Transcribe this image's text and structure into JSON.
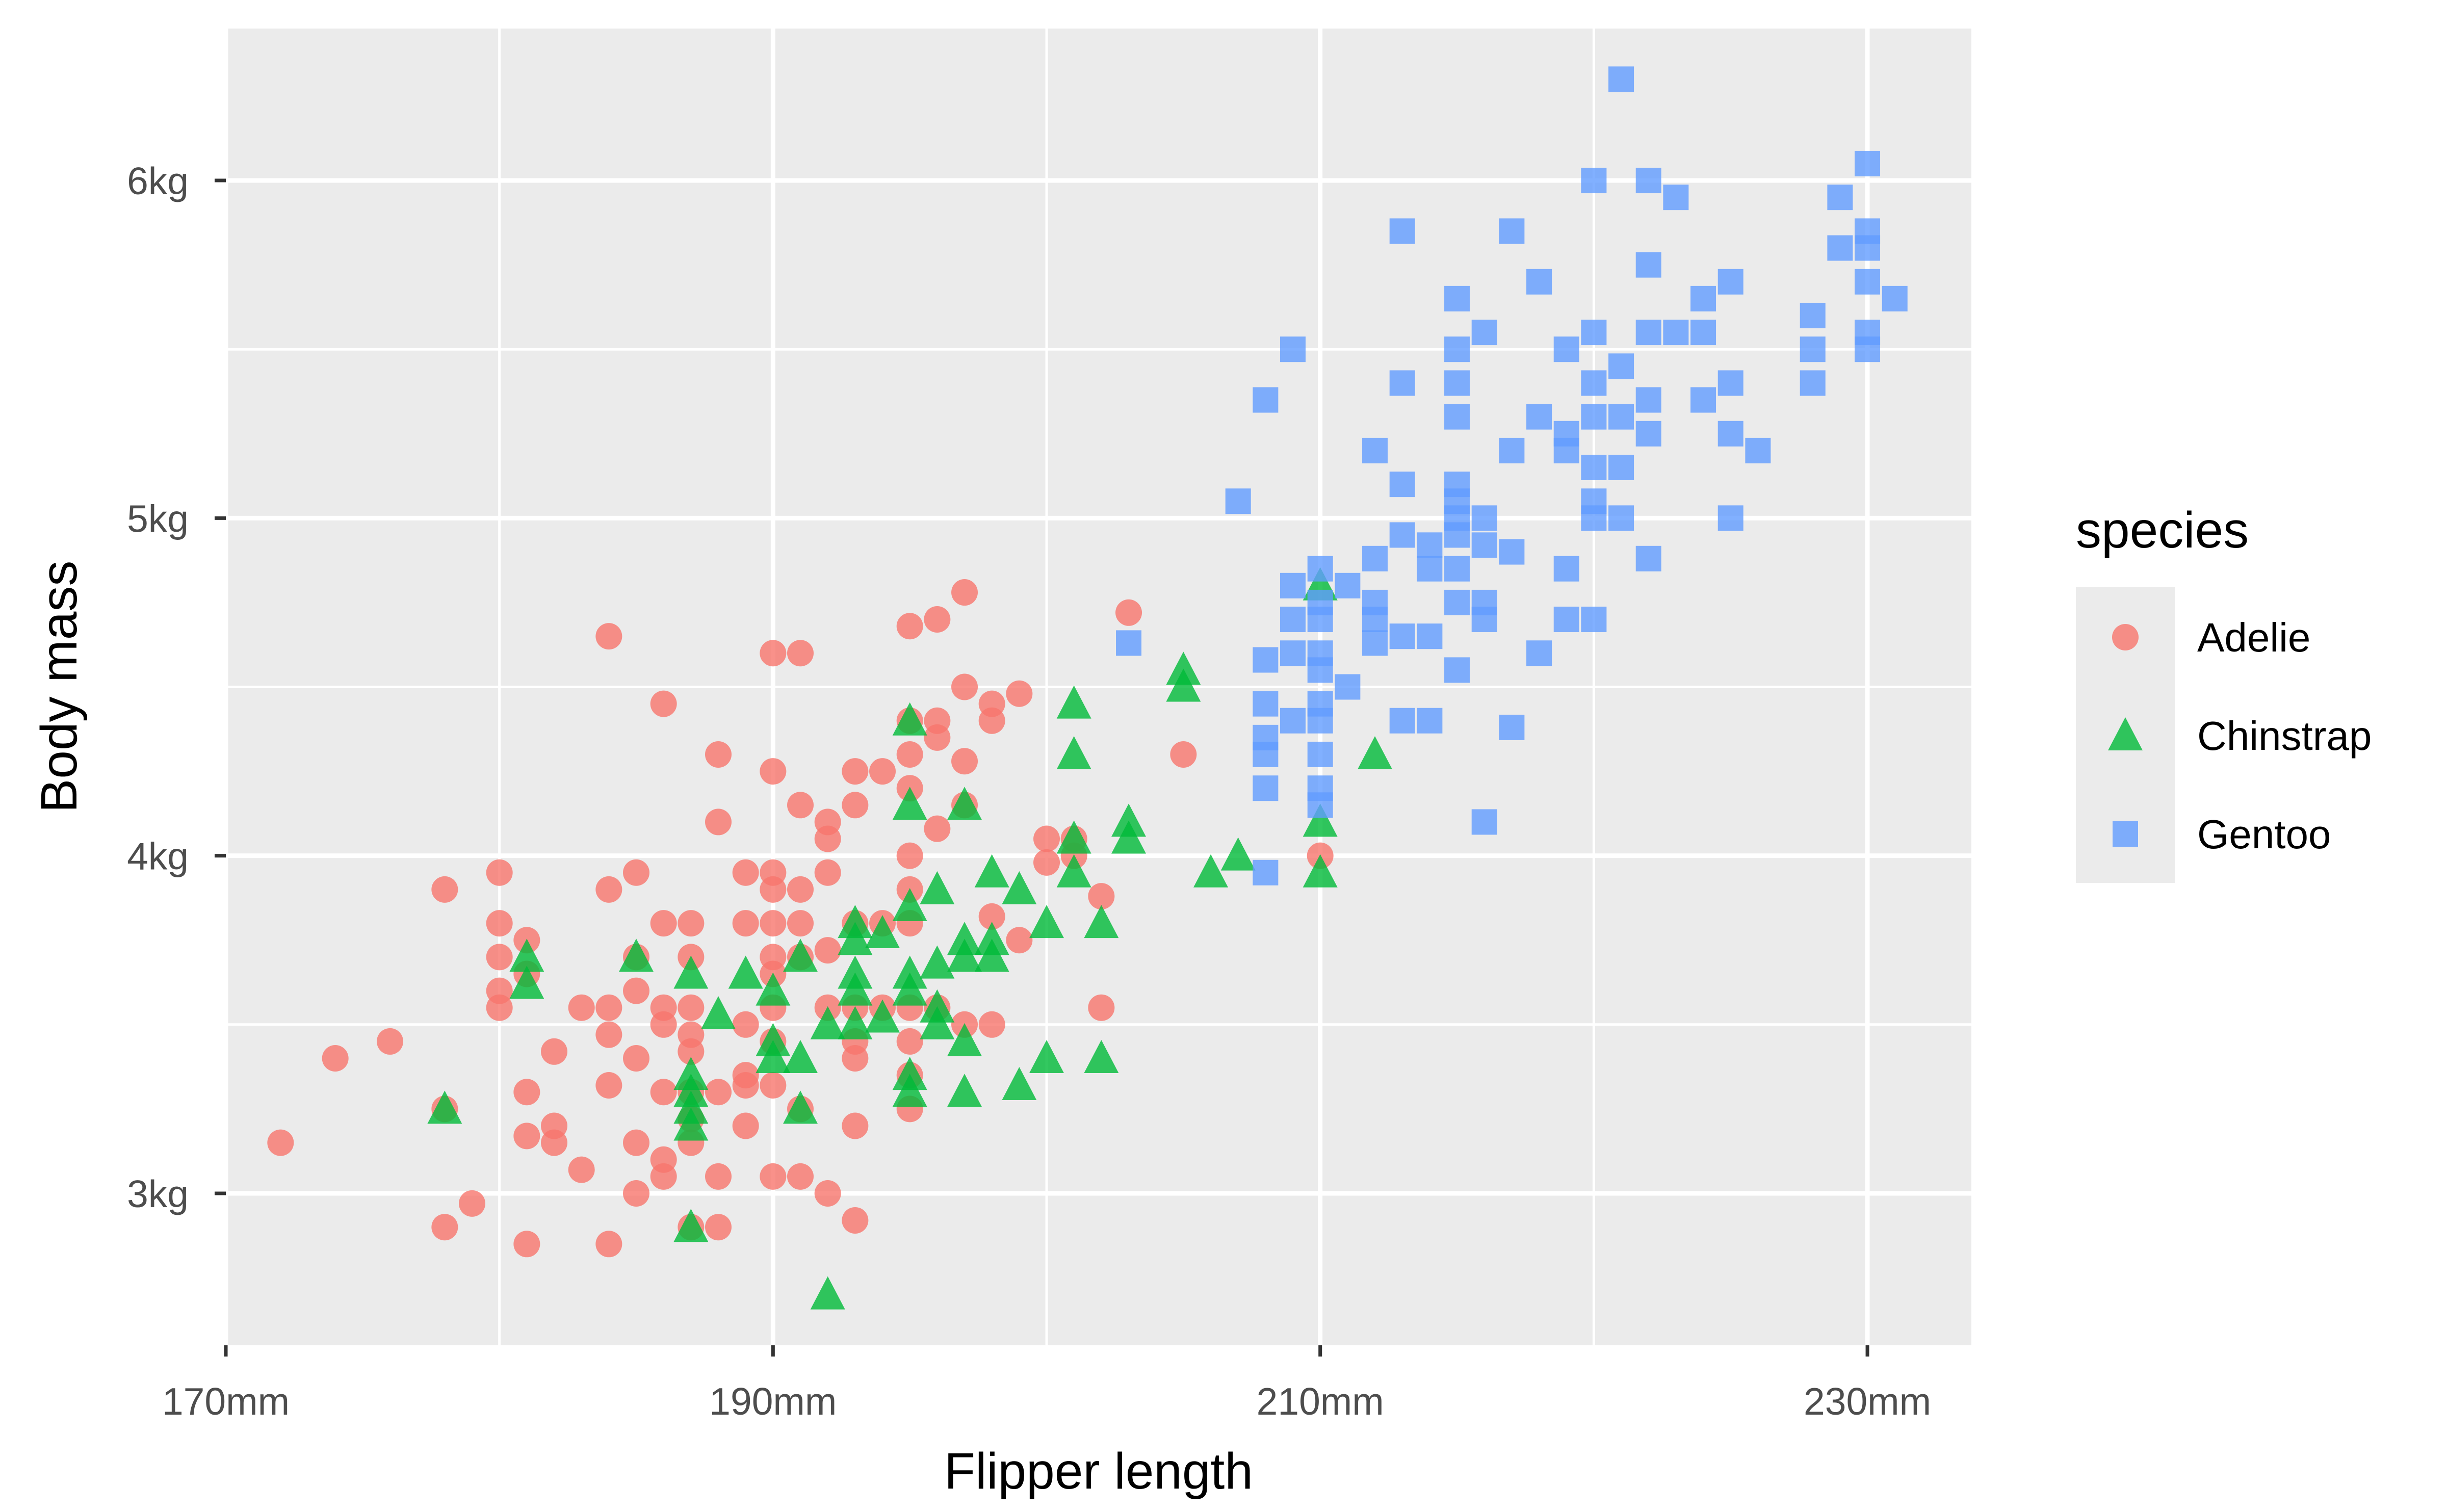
{
  "chart_data": {
    "type": "scatter",
    "title": "",
    "xlabel": "Flipper length",
    "ylabel": "Body mass",
    "xlim": [
      170.0,
      233.8
    ],
    "ylim": [
      2.55,
      6.45
    ],
    "x_ticks": [
      {
        "value": 170,
        "label": "170mm"
      },
      {
        "value": 190,
        "label": "190mm"
      },
      {
        "value": 210,
        "label": "210mm"
      },
      {
        "value": 230,
        "label": "230mm"
      }
    ],
    "y_ticks": [
      {
        "value": 3,
        "label": "3kg"
      },
      {
        "value": 4,
        "label": "4kg"
      },
      {
        "value": 5,
        "label": "5kg"
      },
      {
        "value": 6,
        "label": "6kg"
      }
    ],
    "x_minor": [
      180,
      200,
      220
    ],
    "y_minor": [
      3.5,
      4.5,
      5.5
    ],
    "grid": true,
    "background": "#ebebeb",
    "legend": {
      "title": "species",
      "position": "right"
    },
    "series": [
      {
        "name": "Adelie",
        "shape": "circle",
        "color": "#f8766d",
        "points": [
          [
            172,
            3.15
          ],
          [
            174,
            3.4
          ],
          [
            176,
            3.45
          ],
          [
            178,
            3.9
          ],
          [
            178,
            3.25
          ],
          [
            178,
            2.9
          ],
          [
            179,
            2.97
          ],
          [
            180,
            3.95
          ],
          [
            180,
            3.8
          ],
          [
            180,
            3.7
          ],
          [
            180,
            3.6
          ],
          [
            180,
            3.55
          ],
          [
            181,
            3.75
          ],
          [
            181,
            3.65
          ],
          [
            181,
            3.3
          ],
          [
            181,
            3.17
          ],
          [
            181,
            2.85
          ],
          [
            182,
            3.42
          ],
          [
            182,
            3.2
          ],
          [
            182,
            3.15
          ],
          [
            183,
            3.55
          ],
          [
            183,
            3.07
          ],
          [
            184,
            4.65
          ],
          [
            184,
            3.9
          ],
          [
            184,
            3.55
          ],
          [
            184,
            3.47
          ],
          [
            184,
            3.32
          ],
          [
            184,
            2.85
          ],
          [
            185,
            3.95
          ],
          [
            185,
            3.7
          ],
          [
            185,
            3.6
          ],
          [
            185,
            3.4
          ],
          [
            185,
            3.15
          ],
          [
            185,
            3.0
          ],
          [
            186,
            4.45
          ],
          [
            186,
            3.8
          ],
          [
            186,
            3.55
          ],
          [
            186,
            3.5
          ],
          [
            186,
            3.3
          ],
          [
            186,
            3.1
          ],
          [
            186,
            3.05
          ],
          [
            187,
            3.8
          ],
          [
            187,
            3.7
          ],
          [
            187,
            3.55
          ],
          [
            187,
            3.47
          ],
          [
            187,
            3.42
          ],
          [
            187,
            3.3
          ],
          [
            187,
            3.22
          ],
          [
            187,
            3.15
          ],
          [
            187,
            2.9
          ],
          [
            188,
            4.3
          ],
          [
            188,
            4.1
          ],
          [
            188,
            3.3
          ],
          [
            188,
            3.05
          ],
          [
            188,
            2.9
          ],
          [
            189,
            3.95
          ],
          [
            189,
            3.8
          ],
          [
            189,
            3.5
          ],
          [
            189,
            3.35
          ],
          [
            189,
            3.32
          ],
          [
            189,
            3.2
          ],
          [
            190,
            4.6
          ],
          [
            190,
            4.25
          ],
          [
            190,
            3.95
          ],
          [
            190,
            3.9
          ],
          [
            190,
            3.8
          ],
          [
            190,
            3.7
          ],
          [
            190,
            3.65
          ],
          [
            190,
            3.55
          ],
          [
            190,
            3.45
          ],
          [
            190,
            3.32
          ],
          [
            190,
            3.05
          ],
          [
            191,
            4.6
          ],
          [
            191,
            4.15
          ],
          [
            191,
            3.9
          ],
          [
            191,
            3.8
          ],
          [
            191,
            3.7
          ],
          [
            191,
            3.25
          ],
          [
            191,
            3.05
          ],
          [
            192,
            4.1
          ],
          [
            192,
            4.05
          ],
          [
            192,
            3.95
          ],
          [
            192,
            3.72
          ],
          [
            192,
            3.55
          ],
          [
            192,
            3.0
          ],
          [
            193,
            4.25
          ],
          [
            193,
            4.15
          ],
          [
            193,
            3.8
          ],
          [
            193,
            3.55
          ],
          [
            193,
            3.45
          ],
          [
            193,
            3.4
          ],
          [
            193,
            3.2
          ],
          [
            193,
            2.92
          ],
          [
            194,
            4.25
          ],
          [
            194,
            3.8
          ],
          [
            194,
            3.55
          ],
          [
            195,
            4.68
          ],
          [
            195,
            4.4
          ],
          [
            195,
            4.3
          ],
          [
            195,
            4.2
          ],
          [
            195,
            4.0
          ],
          [
            195,
            3.9
          ],
          [
            195,
            3.8
          ],
          [
            195,
            3.55
          ],
          [
            195,
            3.45
          ],
          [
            195,
            3.35
          ],
          [
            195,
            3.25
          ],
          [
            196,
            4.7
          ],
          [
            196,
            4.4
          ],
          [
            196,
            4.35
          ],
          [
            196,
            4.08
          ],
          [
            196,
            3.55
          ],
          [
            197,
            4.78
          ],
          [
            197,
            4.5
          ],
          [
            197,
            4.28
          ],
          [
            197,
            4.15
          ],
          [
            197,
            3.5
          ],
          [
            198,
            4.45
          ],
          [
            198,
            4.4
          ],
          [
            198,
            3.82
          ],
          [
            198,
            3.5
          ],
          [
            199,
            4.48
          ],
          [
            199,
            3.75
          ],
          [
            200,
            4.05
          ],
          [
            200,
            3.98
          ],
          [
            201,
            4.05
          ],
          [
            201,
            4.0
          ],
          [
            202,
            3.88
          ],
          [
            202,
            3.55
          ],
          [
            203,
            4.72
          ],
          [
            205,
            4.3
          ],
          [
            210,
            4.0
          ]
        ]
      },
      {
        "name": "Chinstrap",
        "shape": "triangle",
        "color": "#00ba38",
        "points": [
          [
            178,
            3.25
          ],
          [
            181,
            3.7
          ],
          [
            181,
            3.62
          ],
          [
            185,
            3.7
          ],
          [
            187,
            3.65
          ],
          [
            187,
            3.35
          ],
          [
            187,
            3.3
          ],
          [
            187,
            3.25
          ],
          [
            187,
            3.2
          ],
          [
            187,
            2.9
          ],
          [
            188,
            3.53
          ],
          [
            189,
            3.65
          ],
          [
            190,
            3.6
          ],
          [
            190,
            3.45
          ],
          [
            190,
            3.4
          ],
          [
            191,
            3.7
          ],
          [
            191,
            3.4
          ],
          [
            191,
            3.25
          ],
          [
            192,
            3.5
          ],
          [
            192,
            2.7
          ],
          [
            193,
            3.8
          ],
          [
            193,
            3.75
          ],
          [
            193,
            3.65
          ],
          [
            193,
            3.6
          ],
          [
            193,
            3.5
          ],
          [
            194,
            3.77
          ],
          [
            194,
            3.52
          ],
          [
            195,
            4.4
          ],
          [
            195,
            4.15
          ],
          [
            195,
            3.85
          ],
          [
            195,
            3.65
          ],
          [
            195,
            3.6
          ],
          [
            195,
            3.35
          ],
          [
            195,
            3.3
          ],
          [
            196,
            3.9
          ],
          [
            196,
            3.68
          ],
          [
            196,
            3.55
          ],
          [
            196,
            3.5
          ],
          [
            197,
            4.15
          ],
          [
            197,
            3.75
          ],
          [
            197,
            3.7
          ],
          [
            197,
            3.45
          ],
          [
            197,
            3.3
          ],
          [
            198,
            3.95
          ],
          [
            198,
            3.75
          ],
          [
            198,
            3.7
          ],
          [
            199,
            3.9
          ],
          [
            199,
            3.32
          ],
          [
            200,
            3.8
          ],
          [
            200,
            3.4
          ],
          [
            201,
            4.45
          ],
          [
            201,
            4.3
          ],
          [
            201,
            4.05
          ],
          [
            201,
            3.95
          ],
          [
            202,
            3.8
          ],
          [
            202,
            3.4
          ],
          [
            203,
            4.1
          ],
          [
            203,
            4.05
          ],
          [
            205,
            4.55
          ],
          [
            205,
            4.5
          ],
          [
            206,
            3.95
          ],
          [
            207,
            4.0
          ],
          [
            210,
            4.8
          ],
          [
            210,
            4.1
          ],
          [
            210,
            3.95
          ],
          [
            212,
            4.3
          ]
        ]
      },
      {
        "name": "Gentoo",
        "shape": "square",
        "color": "#619cff",
        "points": [
          [
            203,
            4.63
          ],
          [
            207,
            5.05
          ],
          [
            208,
            5.35
          ],
          [
            208,
            4.58
          ],
          [
            208,
            4.45
          ],
          [
            208,
            4.35
          ],
          [
            208,
            4.3
          ],
          [
            208,
            4.2
          ],
          [
            208,
            3.95
          ],
          [
            209,
            5.5
          ],
          [
            209,
            4.8
          ],
          [
            209,
            4.7
          ],
          [
            209,
            4.6
          ],
          [
            209,
            4.4
          ],
          [
            210,
            4.85
          ],
          [
            210,
            4.75
          ],
          [
            210,
            4.7
          ],
          [
            210,
            4.6
          ],
          [
            210,
            4.55
          ],
          [
            210,
            4.45
          ],
          [
            210,
            4.4
          ],
          [
            210,
            4.3
          ],
          [
            210,
            4.2
          ],
          [
            210,
            4.15
          ],
          [
            211,
            4.8
          ],
          [
            211,
            4.5
          ],
          [
            212,
            5.2
          ],
          [
            212,
            4.88
          ],
          [
            212,
            4.75
          ],
          [
            212,
            4.7
          ],
          [
            212,
            4.63
          ],
          [
            213,
            5.85
          ],
          [
            213,
            5.4
          ],
          [
            213,
            5.1
          ],
          [
            213,
            4.95
          ],
          [
            213,
            4.65
          ],
          [
            213,
            4.4
          ],
          [
            214,
            4.92
          ],
          [
            214,
            4.85
          ],
          [
            214,
            4.65
          ],
          [
            214,
            4.4
          ],
          [
            215,
            5.65
          ],
          [
            215,
            5.5
          ],
          [
            215,
            5.4
          ],
          [
            215,
            5.3
          ],
          [
            215,
            5.1
          ],
          [
            215,
            5.05
          ],
          [
            215,
            5.0
          ],
          [
            215,
            4.95
          ],
          [
            215,
            4.85
          ],
          [
            215,
            4.75
          ],
          [
            215,
            4.55
          ],
          [
            216,
            5.55
          ],
          [
            216,
            5.0
          ],
          [
            216,
            4.92
          ],
          [
            216,
            4.75
          ],
          [
            216,
            4.7
          ],
          [
            216,
            4.1
          ],
          [
            217,
            5.85
          ],
          [
            217,
            5.2
          ],
          [
            217,
            4.9
          ],
          [
            217,
            4.38
          ],
          [
            218,
            5.7
          ],
          [
            218,
            5.3
          ],
          [
            218,
            4.6
          ],
          [
            219,
            5.5
          ],
          [
            219,
            5.25
          ],
          [
            219,
            5.2
          ],
          [
            219,
            4.85
          ],
          [
            219,
            4.7
          ],
          [
            220,
            6.0
          ],
          [
            220,
            5.55
          ],
          [
            220,
            5.4
          ],
          [
            220,
            5.3
          ],
          [
            220,
            5.15
          ],
          [
            220,
            5.05
          ],
          [
            220,
            5.0
          ],
          [
            220,
            4.7
          ],
          [
            221,
            6.3
          ],
          [
            221,
            5.45
          ],
          [
            221,
            5.3
          ],
          [
            221,
            5.15
          ],
          [
            221,
            5.0
          ],
          [
            222,
            6.0
          ],
          [
            222,
            5.75
          ],
          [
            222,
            5.55
          ],
          [
            222,
            5.35
          ],
          [
            222,
            5.25
          ],
          [
            222,
            4.88
          ],
          [
            223,
            5.95
          ],
          [
            223,
            5.55
          ],
          [
            224,
            5.65
          ],
          [
            224,
            5.55
          ],
          [
            224,
            5.35
          ],
          [
            225,
            5.7
          ],
          [
            225,
            5.4
          ],
          [
            225,
            5.25
          ],
          [
            225,
            5.0
          ],
          [
            226,
            5.2
          ],
          [
            228,
            5.6
          ],
          [
            228,
            5.5
          ],
          [
            228,
            5.4
          ],
          [
            229,
            5.95
          ],
          [
            229,
            5.8
          ],
          [
            230,
            6.05
          ],
          [
            230,
            5.85
          ],
          [
            230,
            5.8
          ],
          [
            230,
            5.7
          ],
          [
            230,
            5.55
          ],
          [
            230,
            5.5
          ],
          [
            231,
            5.65
          ]
        ]
      }
    ]
  }
}
